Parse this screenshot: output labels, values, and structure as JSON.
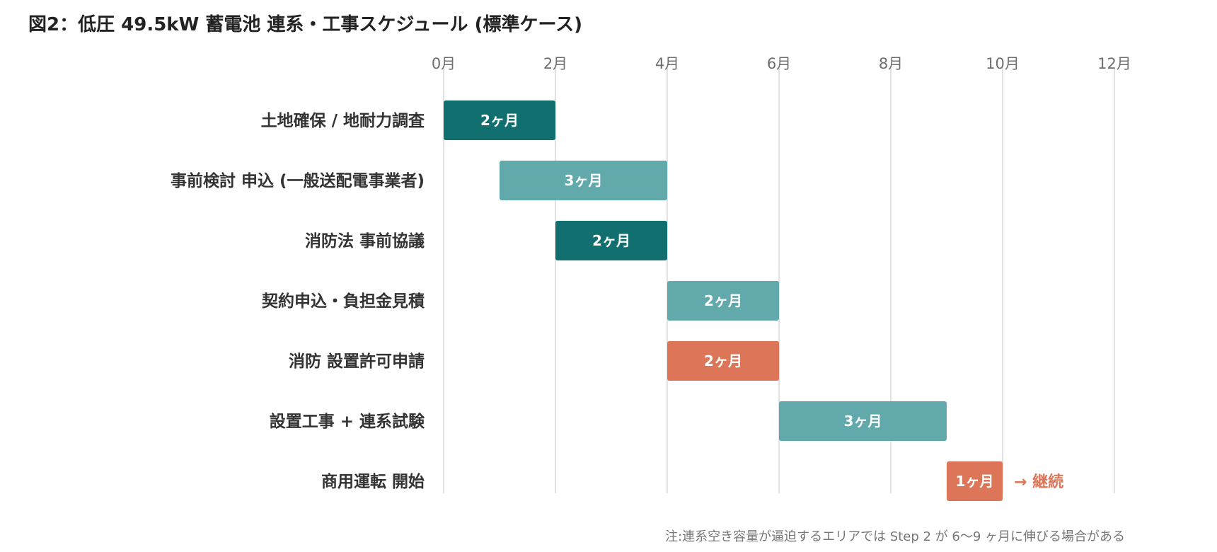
{
  "title": "図2：低圧 49.5kW 蓄電池 連系・工事スケジュール (標準ケース)",
  "note": "注:連系空き容量が逼迫するエリアでは Step 2 が 6〜9 ヶ月に伸びる場合がある",
  "colors": {
    "dark_teal": "#116f70",
    "light_teal": "#62a9ac",
    "coral": "#dd7658",
    "grid": "#d9d9d9",
    "tick_text": "#6e6e6e",
    "label_text": "#333333"
  },
  "chart_data": {
    "type": "gantt",
    "title": "図2：低圧 49.5kW 蓄電池 連系・工事スケジュール (標準ケース)",
    "x_unit": "月",
    "xlim": [
      0,
      12
    ],
    "x_ticks": [
      {
        "value": 0,
        "label": "0月"
      },
      {
        "value": 2,
        "label": "2月"
      },
      {
        "value": 4,
        "label": "4月"
      },
      {
        "value": 6,
        "label": "6月"
      },
      {
        "value": 8,
        "label": "8月"
      },
      {
        "value": 10,
        "label": "10月"
      },
      {
        "value": 12,
        "label": "12月"
      }
    ],
    "grid": true,
    "tasks": [
      {
        "label": "土地確保 / 地耐力調査",
        "start": 0,
        "duration": 2,
        "bar_label": "2ヶ月",
        "color": "#116f70"
      },
      {
        "label": "事前検討 申込 (一般送配電事業者)",
        "start": 1,
        "duration": 3,
        "bar_label": "3ヶ月",
        "color": "#62a9ac"
      },
      {
        "label": "消防法 事前協議",
        "start": 2,
        "duration": 2,
        "bar_label": "2ヶ月",
        "color": "#116f70"
      },
      {
        "label": "契約申込・負担金見積",
        "start": 4,
        "duration": 2,
        "bar_label": "2ヶ月",
        "color": "#62a9ac"
      },
      {
        "label": "消防 設置許可申請",
        "start": 4,
        "duration": 2,
        "bar_label": "2ヶ月",
        "color": "#dd7658"
      },
      {
        "label": "設置工事 + 連系試験",
        "start": 6,
        "duration": 3,
        "bar_label": "3ヶ月",
        "color": "#62a9ac"
      },
      {
        "label": "商用運転 開始",
        "start": 9,
        "duration": 1,
        "bar_label": "1ヶ月",
        "color": "#dd7658",
        "annotation": "→ 継続"
      }
    ]
  }
}
